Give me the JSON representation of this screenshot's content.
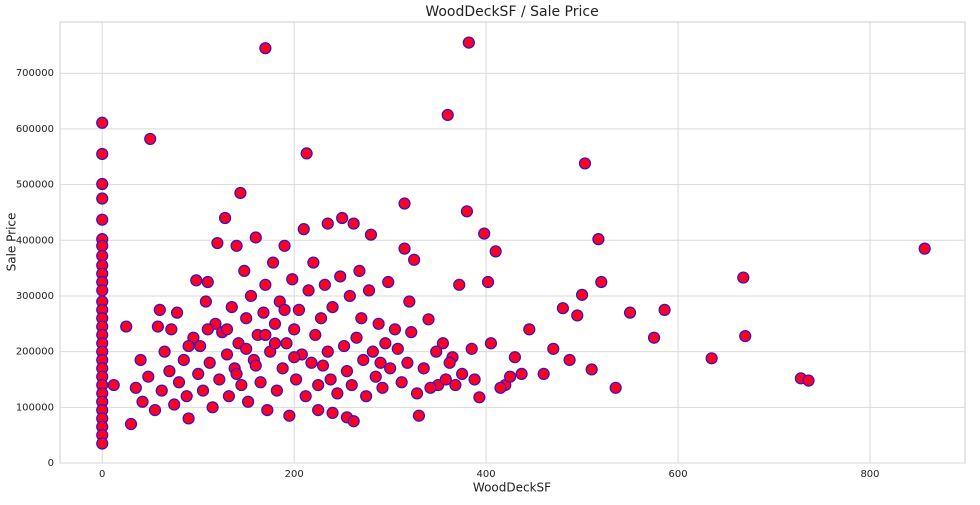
{
  "chart_data": {
    "type": "scatter",
    "title": "WoodDeckSF / Sale Price",
    "x_label": "WoodDeckSF",
    "y_label": "Sale Price",
    "xlim": [
      -44,
      899
    ],
    "ylim": [
      0,
      792000
    ],
    "xticks": [
      0,
      200,
      400,
      600,
      800
    ],
    "yticks": [
      0,
      100000,
      200000,
      300000,
      400000,
      500000,
      600000,
      700000
    ],
    "grid": true,
    "x": [
      0,
      0,
      0,
      0,
      0,
      0,
      0,
      0,
      0,
      0,
      0,
      0,
      0,
      0,
      0,
      0,
      0,
      0,
      0,
      0,
      0,
      0,
      0,
      0,
      0,
      0,
      0,
      0,
      0,
      0,
      170,
      382,
      50,
      213,
      360,
      503,
      144,
      315,
      380,
      857,
      668,
      670,
      635,
      728,
      736,
      586,
      575,
      550,
      535,
      520,
      517,
      500,
      510,
      495,
      480,
      487,
      470,
      460,
      445,
      437,
      430,
      420,
      410,
      402,
      398,
      405,
      393,
      385,
      372,
      365,
      355,
      350,
      340,
      330,
      325,
      320,
      305,
      290,
      280,
      268,
      262,
      250,
      235,
      225,
      255,
      240,
      262,
      12,
      25,
      30,
      35,
      40,
      42,
      48,
      55,
      58,
      60,
      62,
      65,
      70,
      72,
      75,
      78,
      80,
      85,
      88,
      90,
      95,
      98,
      100,
      102,
      105,
      108,
      110,
      112,
      115,
      118,
      120,
      122,
      125,
      128,
      130,
      132,
      135,
      138,
      140,
      142,
      145,
      148,
      150,
      152,
      155,
      158,
      160,
      162,
      165,
      168,
      170,
      172,
      175,
      178,
      180,
      182,
      185,
      188,
      190,
      192,
      195,
      198,
      200,
      202,
      205,
      208,
      210,
      212,
      215,
      218,
      220,
      222,
      225,
      228,
      230,
      232,
      235,
      238,
      240,
      245,
      248,
      252,
      255,
      258,
      260,
      265,
      270,
      272,
      275,
      278,
      282,
      285,
      288,
      292,
      295,
      298,
      300,
      308,
      312,
      315,
      318,
      322,
      328,
      335,
      342,
      348,
      358,
      362,
      368,
      375,
      388,
      415,
      425,
      90,
      110,
      130,
      150,
      160,
      180,
      200,
      140,
      170,
      190
    ],
    "series": [
      {
        "name": "Sale Price",
        "color": "#ff0022",
        "edgecolor": "#3311cc",
        "values": [
          611000,
          555000,
          501000,
          475000,
          437000,
          402000,
          390000,
          372000,
          355000,
          340000,
          325000,
          310000,
          290000,
          275000,
          260000,
          245000,
          230000,
          215000,
          200000,
          185000,
          170000,
          155000,
          140000,
          125000,
          110000,
          95000,
          80000,
          65000,
          50000,
          35000,
          745000,
          755000,
          582000,
          556000,
          625000,
          538000,
          485000,
          466000,
          452000,
          385000,
          333000,
          228000,
          188000,
          152000,
          148000,
          275000,
          225000,
          270000,
          135000,
          325000,
          402000,
          302000,
          168000,
          265000,
          278000,
          185000,
          205000,
          160000,
          240000,
          160000,
          190000,
          140000,
          380000,
          325000,
          412000,
          215000,
          118000,
          205000,
          320000,
          190000,
          215000,
          140000,
          258000,
          85000,
          365000,
          290000,
          240000,
          180000,
          410000,
          345000,
          430000,
          440000,
          430000,
          95000,
          82000,
          90000,
          75000,
          140000,
          245000,
          70000,
          135000,
          185000,
          110000,
          155000,
          95000,
          245000,
          275000,
          130000,
          200000,
          165000,
          240000,
          105000,
          270000,
          145000,
          185000,
          120000,
          80000,
          225000,
          328000,
          160000,
          210000,
          130000,
          290000,
          325000,
          180000,
          100000,
          250000,
          395000,
          150000,
          235000,
          440000,
          195000,
          120000,
          280000,
          170000,
          390000,
          215000,
          140000,
          345000,
          260000,
          110000,
          300000,
          185000,
          405000,
          230000,
          145000,
          270000,
          320000,
          95000,
          200000,
          360000,
          250000,
          130000,
          290000,
          170000,
          390000,
          215000,
          85000,
          330000,
          240000,
          150000,
          275000,
          195000,
          420000,
          120000,
          310000,
          180000,
          360000,
          230000,
          140000,
          260000,
          175000,
          320000,
          200000,
          150000,
          280000,
          125000,
          335000,
          210000,
          165000,
          300000,
          140000,
          225000,
          260000,
          185000,
          120000,
          310000,
          200000,
          155000,
          250000,
          135000,
          215000,
          325000,
          170000,
          205000,
          145000,
          385000,
          180000,
          235000,
          125000,
          170000,
          135000,
          200000,
          150000,
          180000,
          140000,
          160000,
          150000,
          135000,
          155000,
          210000,
          240000,
          240000,
          205000,
          175000,
          215000,
          190000,
          160000,
          230000,
          275000
        ]
      }
    ]
  }
}
